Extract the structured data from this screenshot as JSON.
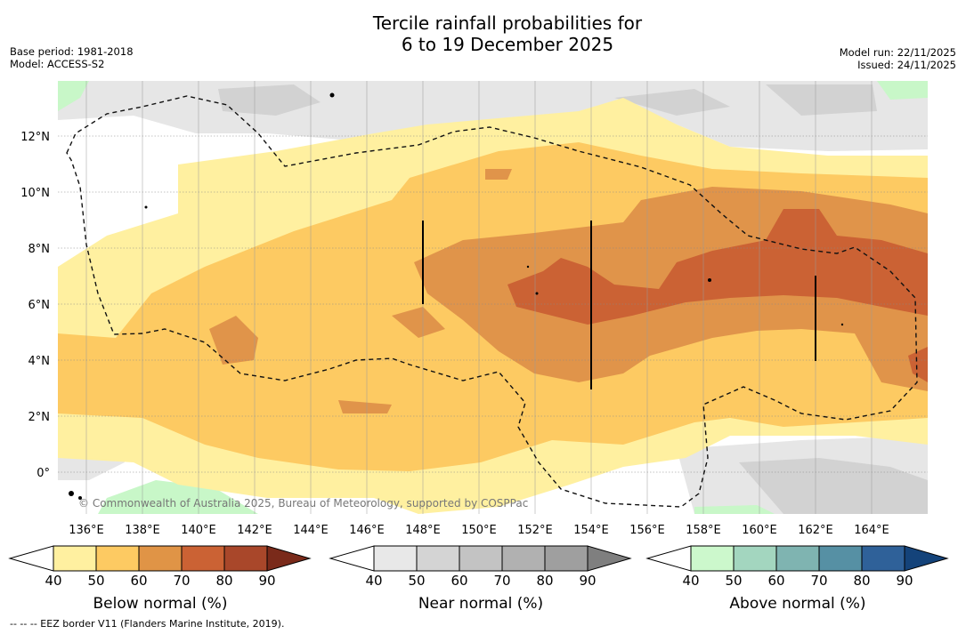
{
  "title": {
    "line1": "Tercile rainfall probabilities for",
    "line2": "6 to 19 December 2025"
  },
  "meta_left": {
    "base_period": "Base period: 1981-2018",
    "model": "Model: ACCESS-S2"
  },
  "meta_right": {
    "model_run": "Model run: 22/11/2025",
    "issued": "Issued: 24/11/2025"
  },
  "map": {
    "lat_labels": [
      "12°N",
      "10°N",
      "8°N",
      "6°N",
      "4°N",
      "2°N",
      "0°"
    ],
    "lon_labels": [
      "136°E",
      "138°E",
      "140°E",
      "142°E",
      "144°E",
      "146°E",
      "148°E",
      "150°E",
      "152°E",
      "154°E",
      "156°E",
      "158°E",
      "160°E",
      "162°E",
      "164°E"
    ],
    "copyright": "© Commonwealth of Australia 2025, Bureau of Meteorology, supported by COSPPac"
  },
  "colorbars": [
    {
      "label": "Below normal (%)",
      "ticks": [
        "40",
        "50",
        "60",
        "70",
        "80",
        "90"
      ],
      "colors": [
        "#fff0a0",
        "#fdca62",
        "#e09446",
        "#cb6234",
        "#a9472a",
        "#7a2a1a"
      ]
    },
    {
      "label": "Near normal (%)",
      "ticks": [
        "40",
        "50",
        "60",
        "70",
        "80",
        "90"
      ],
      "colors": [
        "#e8e8e8",
        "#d4d4d4",
        "#c3c3c3",
        "#b1b1b1",
        "#9f9f9f",
        "#7f7f7f"
      ]
    },
    {
      "label": "Above normal (%)",
      "ticks": [
        "40",
        "50",
        "60",
        "70",
        "80",
        "90"
      ],
      "colors": [
        "#ccf8cc",
        "#a3d6bf",
        "#7fb4b1",
        "#5690a4",
        "#2f6199",
        "#14437a"
      ]
    }
  ],
  "footer": "-- -- -- EEZ border V11 (Flanders Marine Institute, 2019)."
}
